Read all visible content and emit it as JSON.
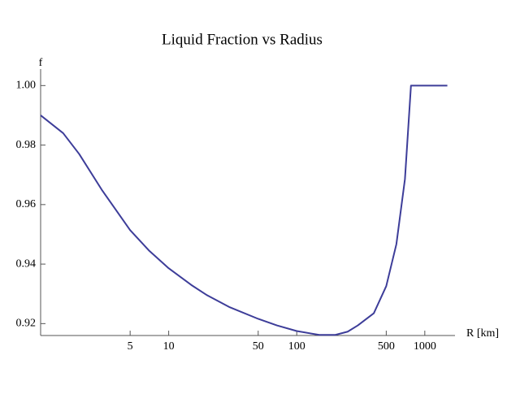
{
  "chart_data": {
    "type": "line",
    "title": "Liquid Fraction vs Radius",
    "x_label": "R [km]",
    "y_label": "f",
    "x_scale": "log",
    "x": [
      1,
      1.5,
      2,
      3,
      5,
      7,
      10,
      15,
      20,
      30,
      50,
      70,
      100,
      150,
      200,
      250,
      300,
      400,
      500,
      600,
      700,
      780,
      1500
    ],
    "series": [
      {
        "name": "f",
        "color": "#3d3d99",
        "values": [
          0.99,
          0.984,
          0.977,
          0.965,
          0.9514,
          0.9446,
          0.9386,
          0.933,
          0.9295,
          0.9255,
          0.9216,
          0.9194,
          0.9175,
          0.9162,
          0.9162,
          0.9173,
          0.9194,
          0.9235,
          0.9326,
          0.9467,
          0.9686,
          1.0,
          1.0
        ]
      }
    ],
    "xlim": [
      1,
      1600
    ],
    "xticks": [
      5,
      10,
      50,
      100,
      500,
      1000
    ],
    "ylim": [
      0.916,
      1.002
    ],
    "yticks": [
      0.92,
      0.94,
      0.96,
      0.98,
      {
        "value": 1,
        "label": "1.00"
      }
    ],
    "grid": false
  }
}
